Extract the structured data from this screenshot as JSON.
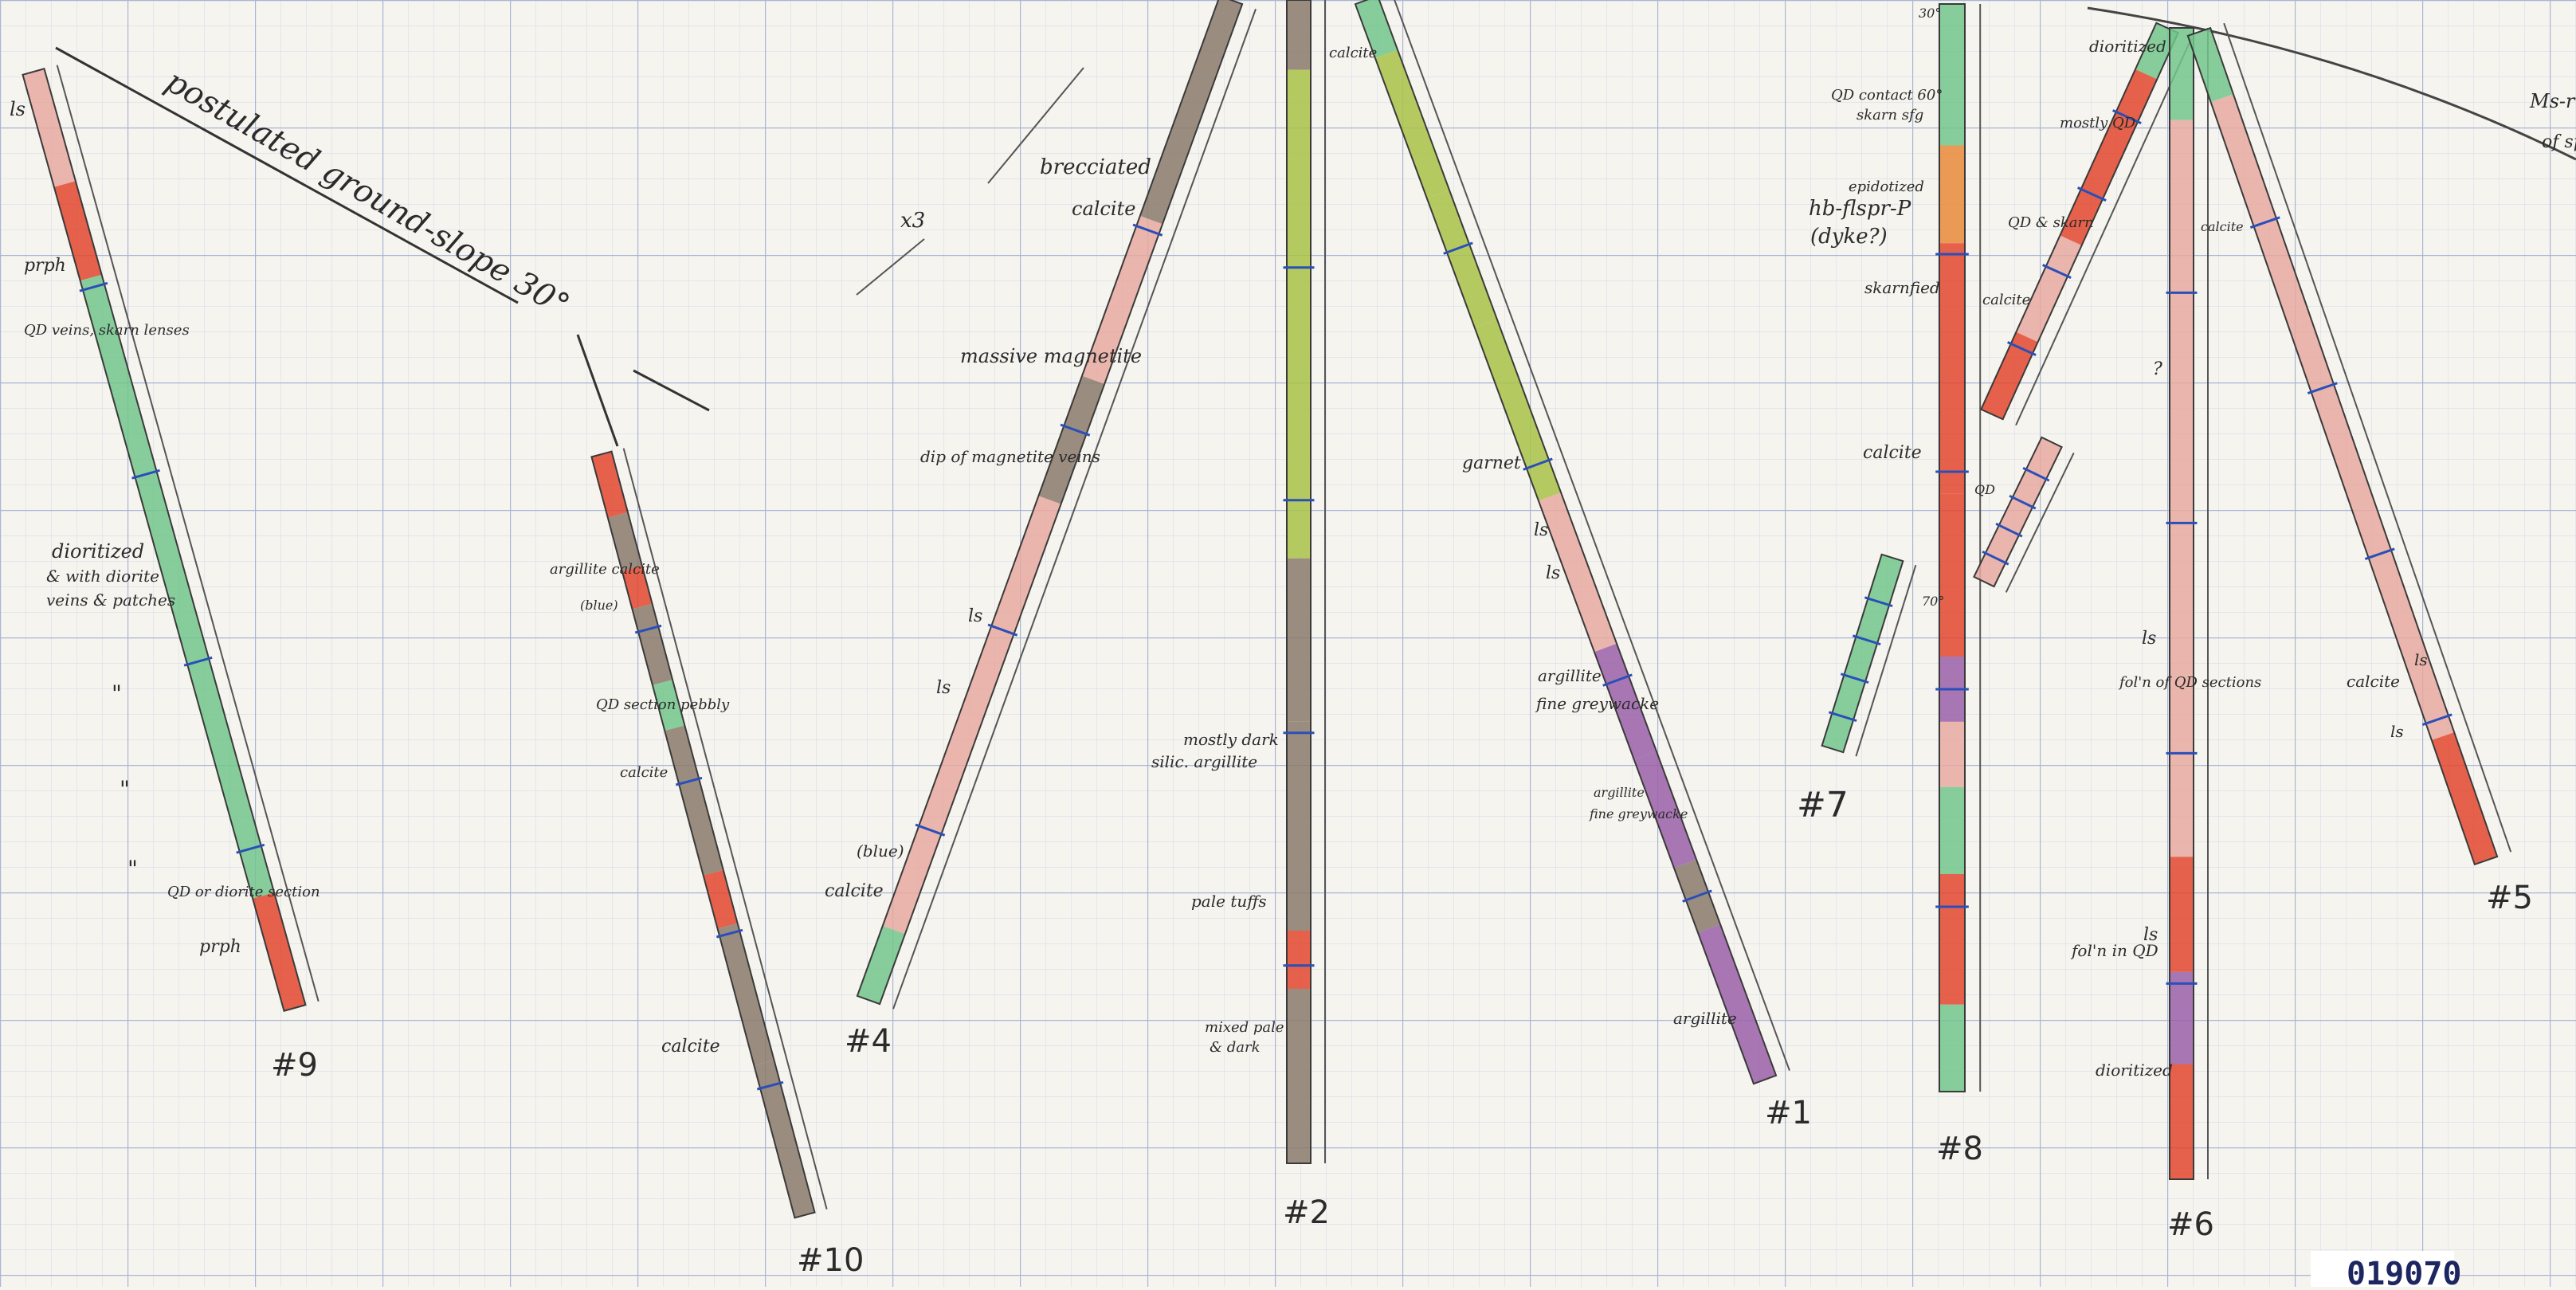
{
  "title_annotation": "postulated ground-slope 30°",
  "hole_labels": [
    "#9",
    "#10",
    "#4",
    "#2",
    "#1",
    "#8",
    "#7",
    "#6",
    "#5"
  ],
  "annotations": {
    "ls_9": "ls",
    "prph_top": "prph",
    "qd_veins_skarn": "QD veins, skarn lenses",
    "dioritized": "dioritized",
    "with_diorite_veins": "& with diorite",
    "veins_patches": "veins & patches",
    "ditto1": "\"",
    "ditto2": "\"",
    "ditto3": "\"",
    "qd_or_diorite": "QD or diorite section",
    "prph_bottom": "prph",
    "argillite_calcite": "argillite calcite",
    "blue_10": "(blue)",
    "qd_section_pebbly": "QD section pebbly",
    "calcite_10a": "calcite",
    "calcite_10b": "calcite",
    "x3": "x3",
    "brecciated": "brecciated",
    "calcite_4a": "calcite",
    "massive_magnetite": "massive magnetite",
    "dip_magnetite": "dip of magnetite veins",
    "ls_4a": "ls",
    "ls_4b": "ls",
    "blue_4": "(blue)",
    "calcite_4b": "calcite",
    "calcite_2": "calcite",
    "mostly_dark": "mostly dark",
    "silic_argillite": "silic. argillite",
    "pale_tuffs": "pale tuffs",
    "mixed_pale": "mixed pale",
    "and_dark": "& dark",
    "garnet": "garnet",
    "ls_1a": "ls",
    "ls_1b": "ls",
    "argillite_1a": "argillite",
    "fine_greywacke_1a": "fine greywacke",
    "argillite_1b": "argillite",
    "fine_greywacke_1b": "fine greywacke",
    "argillite_1c": "argillite",
    "angle_30": "30°",
    "qd_contact": "QD contact 60°",
    "skarn_sfg": "skarn sfg",
    "epidotized": "epidotized",
    "hb_flspr": "hb-flspr-P",
    "dyke": "(dyke?)",
    "skarnfied": "skarnfied",
    "calcite_8": "calcite",
    "angle_70": "70°",
    "dioritized_6a": "dioritized",
    "mostly_qd": "mostly QD",
    "qd_skarn": "QD & skarn",
    "calcite_7": "calcite",
    "qd_small": "QD",
    "question": "?",
    "ls_6a": "ls",
    "fol_qd": "fol'n of QD sections",
    "ls_6b": "ls",
    "fol_qd2": "fol'n in QD",
    "dioritized_6b": "dioritized",
    "calcite_6": "calcite",
    "ls_5": "ls",
    "calcite_5": "calcite",
    "ls_5b": "ls",
    "msr": "Ms-r",
    "ofsp": "of sp",
    "stamp": "019070"
  },
  "colors": {
    "paper": "#f6f4ee",
    "grid_minor": "#d4dbeb",
    "grid_major": "#aab6d6",
    "pencil": "#2b2b2b",
    "tan_argillite": "#8a7a6c",
    "pink_ls": "#e6a9a0",
    "green_dioritized": "#72c68c",
    "lime_skarn": "#a8c248",
    "red_prph": "#e2472e",
    "purple": "#9a5fa8",
    "orange": "#e98a3a",
    "blue_calcite": "#2a4fb8"
  }
}
